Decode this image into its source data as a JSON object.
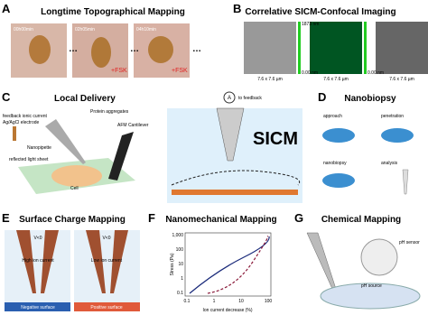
{
  "panels": [
    {
      "letter": "A",
      "title": "Longtime Topographical Mapping",
      "labels": [
        "00h00min",
        "02h05min",
        "04h10min",
        "+FSK",
        "+FSK"
      ]
    },
    {
      "letter": "B",
      "title": "Correlative SICM-Confocal Imaging",
      "labels": [
        "7.6 x 7.6 µm",
        "7.6 x 7.6 µm",
        "7.6 x 7.6 µm",
        "1873 nm",
        "0.00 nm",
        "0.00 nm"
      ]
    },
    {
      "letter": "C",
      "title": "Local Delivery",
      "labels": [
        "feedback ionic current",
        "Ag/AgCl electrode",
        "Protein aggregates",
        "AFM Cantilever",
        "Nanopipette",
        "reflected light sheet",
        "Cell",
        "to feedback",
        "A",
        "SICM"
      ]
    },
    {
      "letter": "D",
      "title": "Nanobiopsy",
      "labels": [
        "approach",
        "penetration",
        "nanobiopsy",
        "analysis"
      ]
    },
    {
      "letter": "E",
      "title": "Surface Charge Mapping",
      "labels": [
        "V<0",
        "V<0",
        "High ion current",
        "Low ion current",
        "Negative surface",
        "Positive surface"
      ]
    },
    {
      "letter": "F",
      "title": "Nanomechanical Mapping",
      "labels": [
        "Stress (Pa)",
        "Ion current decrease (%)",
        "1,000",
        "100",
        "10",
        "1",
        "0.1",
        "0.1",
        "1",
        "10",
        "100"
      ]
    },
    {
      "letter": "G",
      "title": "Chemical Mapping",
      "labels": [
        "pH sensor",
        "pH source"
      ]
    }
  ]
}
